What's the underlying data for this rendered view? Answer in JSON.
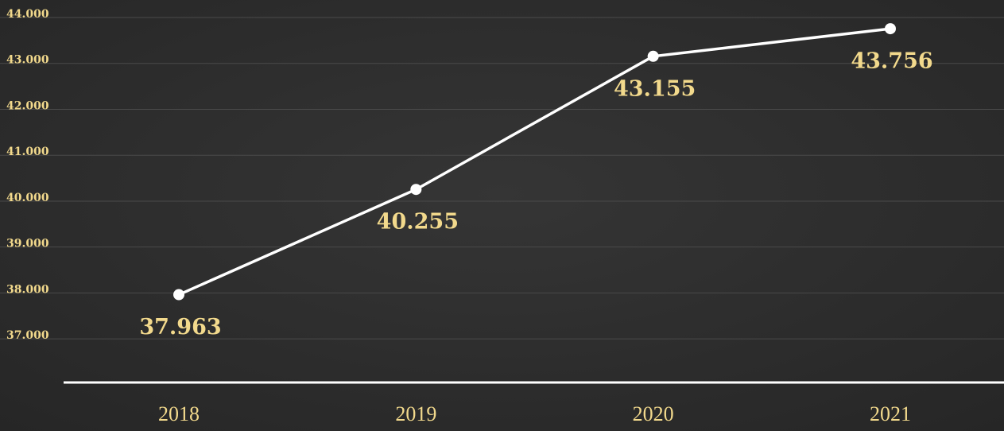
{
  "chart_data": {
    "type": "line",
    "categories": [
      "2018",
      "2019",
      "2020",
      "2021"
    ],
    "values": [
      37963,
      40255,
      43155,
      43756
    ],
    "value_labels": [
      "37.963",
      "40.255",
      "43.155",
      "43.756"
    ],
    "color": "#ffffff",
    "ylim": [
      36050,
      44000
    ],
    "yticks": [
      {
        "value": 37000,
        "label": "37.000"
      },
      {
        "value": 38000,
        "label": "38.000"
      },
      {
        "value": 39000,
        "label": "39.000"
      },
      {
        "value": 40000,
        "label": "40.000"
      },
      {
        "value": 41000,
        "label": "41.000"
      },
      {
        "value": 42000,
        "label": "42.000"
      },
      {
        "value": 43000,
        "label": "43.000"
      },
      {
        "value": 44000,
        "label": "44.000"
      }
    ],
    "grid": true
  }
}
